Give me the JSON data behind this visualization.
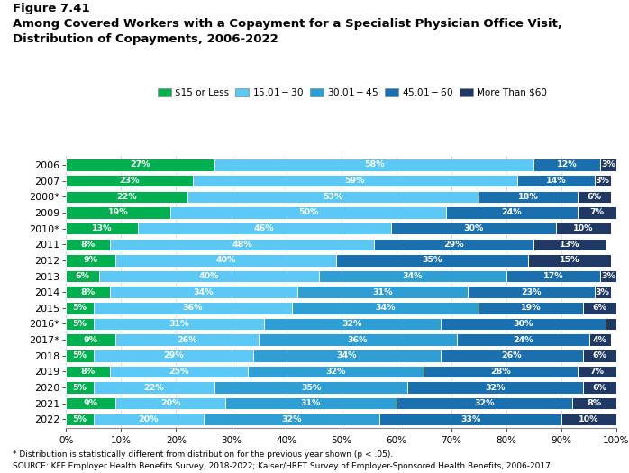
{
  "years": [
    "2006",
    "2007",
    "2008*",
    "2009",
    "2010*",
    "2011",
    "2012",
    "2013",
    "2014",
    "2015",
    "2016*",
    "2017*",
    "2018",
    "2019",
    "2020",
    "2021",
    "2022"
  ],
  "seg_colors": [
    "#00b050",
    "#5bc8f5",
    "#2e9fd4",
    "#1a6faf",
    "#1f3864"
  ],
  "legend_labels": [
    "$15 or Less",
    "$15.01 - $30",
    "$30.01 - $45",
    "$45.01 - $60",
    "More Than $60"
  ],
  "data": [
    [
      27,
      58,
      0,
      12,
      3
    ],
    [
      23,
      59,
      0,
      14,
      3
    ],
    [
      22,
      53,
      0,
      18,
      6
    ],
    [
      19,
      50,
      0,
      24,
      7
    ],
    [
      13,
      46,
      0,
      30,
      10
    ],
    [
      8,
      48,
      0,
      29,
      13
    ],
    [
      9,
      40,
      0,
      35,
      15
    ],
    [
      6,
      40,
      34,
      17,
      3
    ],
    [
      8,
      34,
      31,
      23,
      3
    ],
    [
      5,
      36,
      34,
      19,
      6
    ],
    [
      5,
      31,
      32,
      30,
      2
    ],
    [
      9,
      26,
      36,
      24,
      4
    ],
    [
      5,
      29,
      34,
      26,
      6
    ],
    [
      8,
      25,
      32,
      28,
      7
    ],
    [
      5,
      22,
      35,
      32,
      6
    ],
    [
      9,
      20,
      31,
      32,
      8
    ],
    [
      5,
      20,
      32,
      33,
      10
    ]
  ],
  "labels": [
    [
      "27%",
      "58%",
      "",
      "12%",
      "3%"
    ],
    [
      "23%",
      "59%",
      "",
      "14%",
      "3%"
    ],
    [
      "22%",
      "53%",
      "",
      "18%",
      "6%"
    ],
    [
      "19%",
      "50%",
      "",
      "24%",
      "7%"
    ],
    [
      "13%",
      "46%",
      "",
      "30%",
      "10%"
    ],
    [
      "8%",
      "48%",
      "",
      "29%",
      "13%"
    ],
    [
      "9%",
      "40%",
      "",
      "35%",
      "15%"
    ],
    [
      "6%",
      "40%",
      "34%",
      "17%",
      "3%"
    ],
    [
      "8%",
      "34%",
      "31%",
      "23%",
      "3%"
    ],
    [
      "5%",
      "36%",
      "34%",
      "19%",
      "6%"
    ],
    [
      "5%",
      "31%",
      "32%",
      "30%",
      ""
    ],
    [
      "9%",
      "26%",
      "36%",
      "24%",
      "4%"
    ],
    [
      "5%",
      "29%",
      "34%",
      "26%",
      "6%"
    ],
    [
      "8%",
      "25%",
      "32%",
      "28%",
      "7%"
    ],
    [
      "5%",
      "22%",
      "35%",
      "32%",
      "6%"
    ],
    [
      "9%",
      "20%",
      "31%",
      "32%",
      "8%"
    ],
    [
      "5%",
      "20%",
      "32%",
      "33%",
      "10%"
    ]
  ],
  "title1": "Figure 7.41",
  "title2": "Among Covered Workers with a Copayment for a Specialist Physician Office Visit,",
  "title3": "Distribution of Copayments, 2006-2022",
  "footnote1": "* Distribution is statistically different from distribution for the previous year shown (p < .05).",
  "footnote2": "SOURCE: KFF Employer Health Benefits Survey, 2018-2022; Kaiser/HRET Survey of Employer-Sponsored Health Benefits, 2006-2017"
}
